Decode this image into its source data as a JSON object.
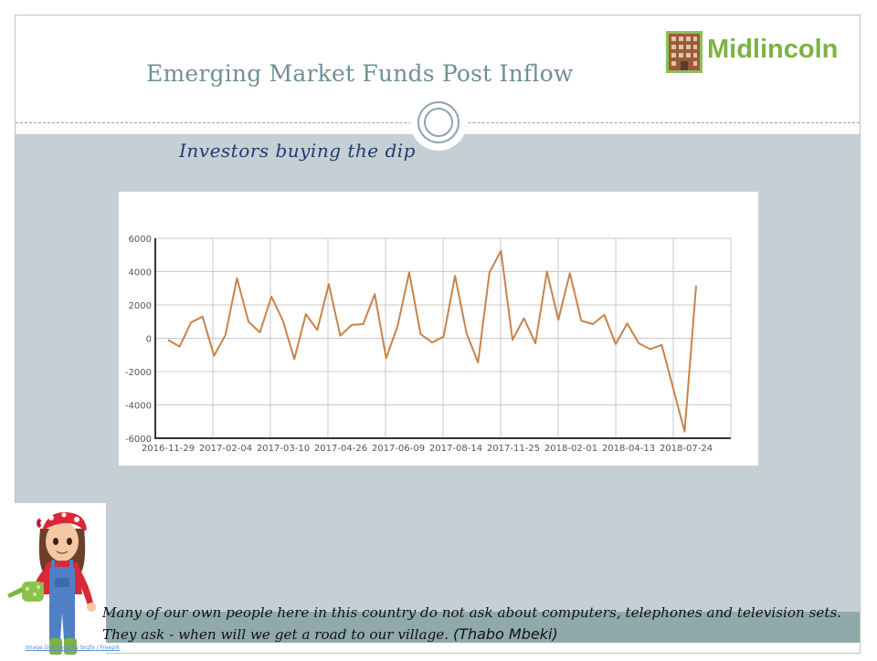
{
  "slide": {
    "title": "Emerging Market Funds Post Inflow",
    "subtitle": "Investors buying the dip",
    "logo_text": "Midlincoln",
    "quote_text": "Many of our own people here in this country do not ask about computers, telephones and television sets. They ask - when will we get a road to our village.",
    "quote_author": "(Thabo Mbeki)",
    "image_credit": "Image Designed by brgfx / Freepik"
  },
  "colors": {
    "line": "#c8834a",
    "band": "#c5d0d5",
    "footer": "#90aaab",
    "logo_green": "#7cb342",
    "title": "#6f8f97",
    "subtitle": "#1f3b73"
  },
  "chart_data": {
    "type": "line",
    "title": "",
    "xlabel": "",
    "ylabel": "",
    "ylim": [
      -6000,
      6000
    ],
    "yticks": [
      6000,
      4000,
      2000,
      0,
      -2000,
      -4000,
      -6000
    ],
    "xtick_labels": [
      "2016-11-29",
      "2017-02-04",
      "2017-03-10",
      "2017-04-26",
      "2017-06-09",
      "2017-08-14",
      "2017-11-25",
      "2018-02-01",
      "2018-04-13",
      "2018-07-24"
    ],
    "grid": true,
    "legend": "none",
    "series": [
      {
        "values": [
          -100,
          -500,
          950,
          1300,
          -1050,
          200,
          3600,
          1000,
          350,
          2500,
          1050,
          -1250,
          1450,
          500,
          3250,
          150,
          800,
          850,
          2650,
          -1200,
          750,
          3950,
          250,
          -250,
          100,
          3750,
          300,
          -1450,
          3950,
          5250,
          -100,
          1200,
          -300,
          4000,
          1100,
          3900,
          1050,
          850,
          1400,
          -350,
          900,
          -300,
          -650,
          -400,
          -3000,
          -5600,
          3150
        ]
      }
    ]
  }
}
